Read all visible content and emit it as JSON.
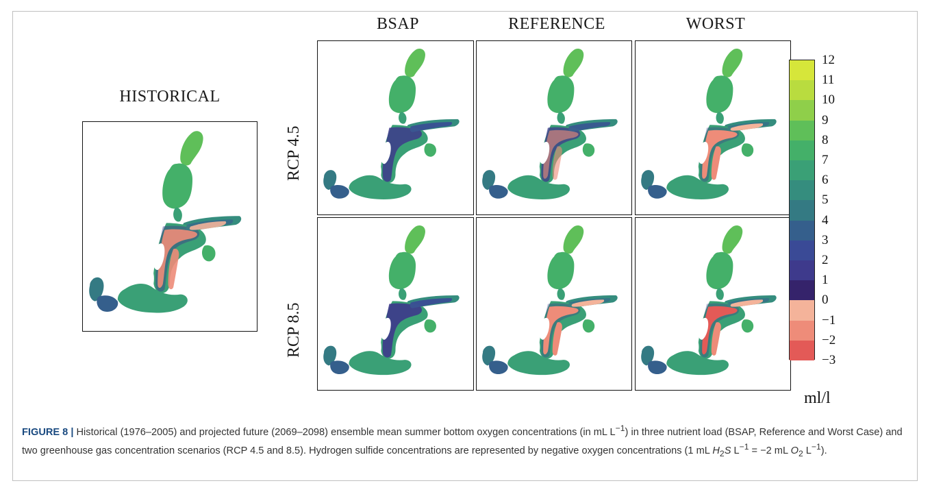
{
  "figure": {
    "column_labels": [
      "BSAP",
      "REFERENCE",
      "WORST"
    ],
    "row_labels": [
      "RCP 4.5",
      "RCP 8.5"
    ],
    "historical_label": "HISTORICAL",
    "colorbar": {
      "ticks": [
        "12",
        "11",
        "10",
        "9",
        "8",
        "7",
        "6",
        "5",
        "4",
        "3",
        "2",
        "1",
        "0",
        "−1",
        "−2",
        "−3"
      ],
      "unit": "ml/l",
      "colors": {
        "12": "#d6e63a",
        "11": "#b9dc3f",
        "10": "#8fcf4a",
        "9": "#5fbf59",
        "8": "#44b069",
        "7": "#3aa076",
        "6": "#358d7e",
        "5": "#347a83",
        "4": "#355f8c",
        "3": "#3a4a96",
        "2": "#3e3a8c",
        "1": "#35236b",
        "0": "#f4b39a",
        "-1": "#ee8c79",
        "-2": "#e35a57",
        "-3": "#c9262d"
      }
    },
    "panels": [
      {
        "id": "historical",
        "anoxic_level": 0.55,
        "hypoxic_level": 0.45
      },
      {
        "id": "rcp45-bsap",
        "anoxic_level": 0.0,
        "hypoxic_level": 0.85
      },
      {
        "id": "rcp45-reference",
        "anoxic_level": 0.25,
        "hypoxic_level": 0.75
      },
      {
        "id": "rcp45-worst",
        "anoxic_level": 0.7,
        "hypoxic_level": 0.3
      },
      {
        "id": "rcp85-bsap",
        "anoxic_level": 0.0,
        "hypoxic_level": 0.9
      },
      {
        "id": "rcp85-reference",
        "anoxic_level": 0.65,
        "hypoxic_level": 0.35
      },
      {
        "id": "rcp85-worst",
        "anoxic_level": 0.9,
        "hypoxic_level": 0.1
      }
    ]
  },
  "caption": {
    "label": "FIGURE 8 |",
    "text_1": " Historical (1976–2005) and projected future (2069–2098) ensemble mean summer bottom oxygen concentrations (in mL L",
    "sup_1": "−1",
    "text_2": ") in three nutrient load (BSAP, Reference and Worst Case) and two greenhouse gas concentration scenarios (RCP 4.5 and 8.5). Hydrogen sulfide concentrations are represented by negative oxygen concentrations (1 mL ",
    "h2s": "H",
    "h2s_sub": "2",
    "h2s_s": "S",
    "text_3": " L",
    "sup_2": "−1",
    "text_4": " = −2 mL ",
    "o2": "O",
    "o2_sub": "2",
    "text_5": " L",
    "sup_3": "−1",
    "text_6": ")."
  }
}
